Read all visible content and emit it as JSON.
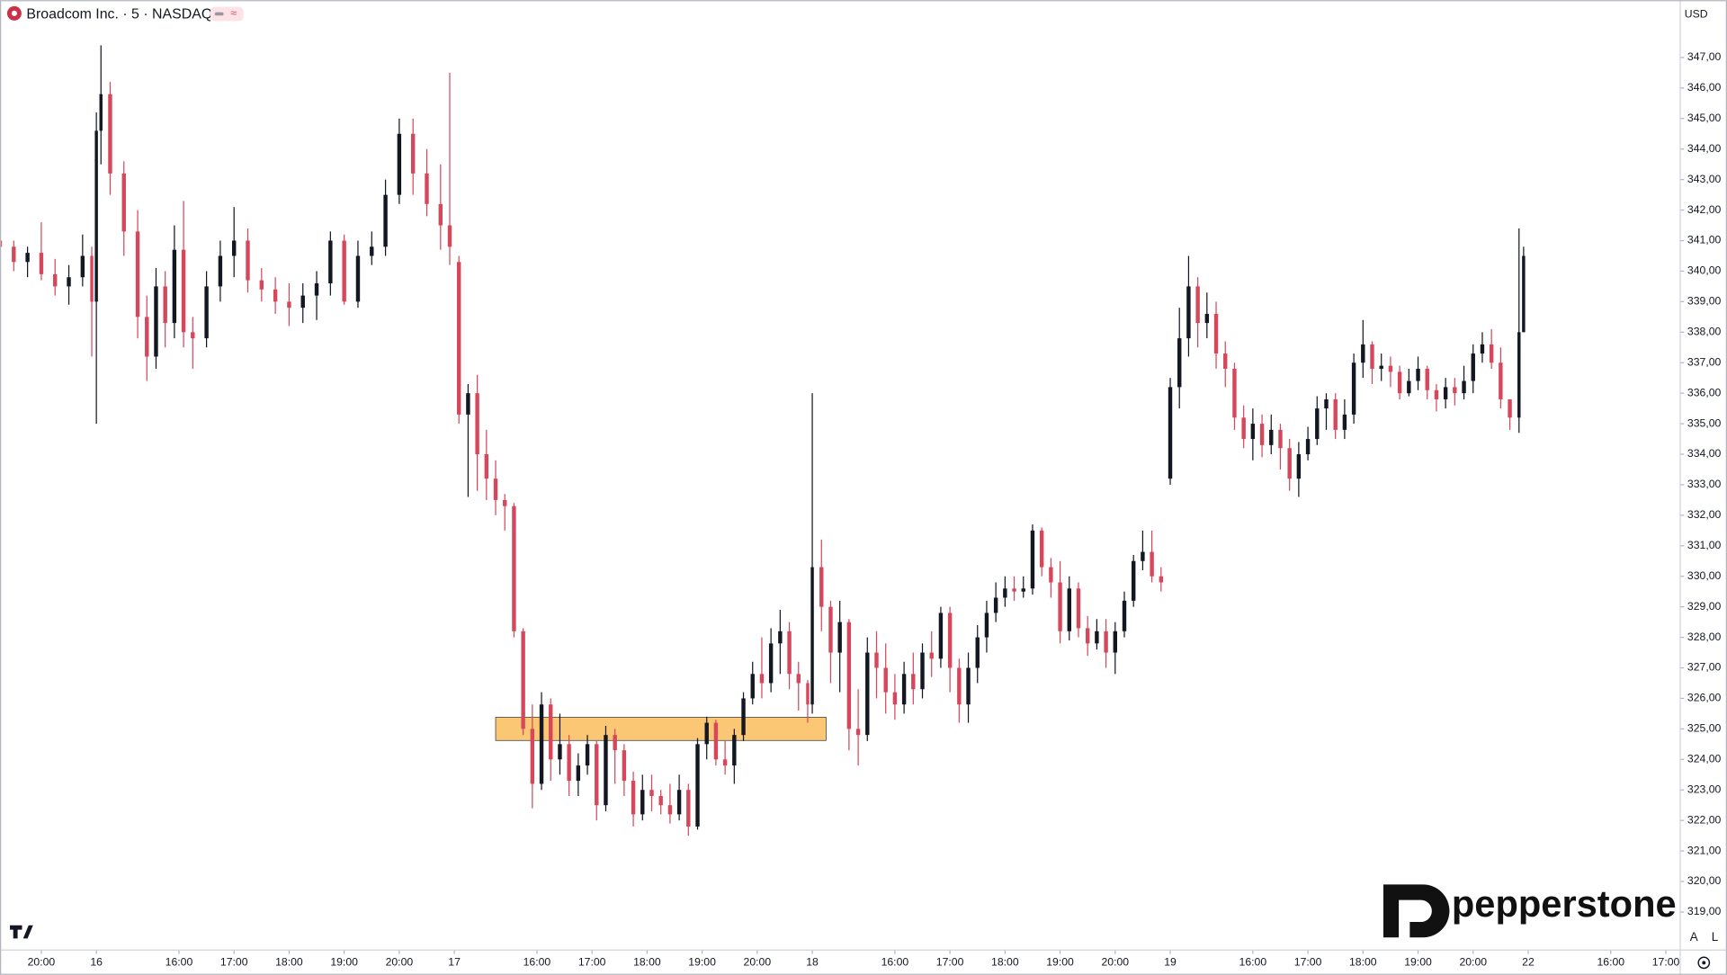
{
  "chart_data": {
    "type": "candlestick",
    "title": "Broadcom Inc. · 5 · NASDAQ",
    "currency": "USD",
    "scale_buttons": [
      "A",
      "L"
    ],
    "watermark": "pepperstone",
    "badge": "PRO",
    "up_color": "#131722",
    "down_color": "#d6475c",
    "xlim": [
      0,
      366
    ],
    "ylim": [
      317.77,
      348.88
    ],
    "xticks": [
      {
        "value": 9,
        "label": "20:00"
      },
      {
        "value": 21,
        "label": "16"
      },
      {
        "value": 39,
        "label": "16:00"
      },
      {
        "value": 51,
        "label": "17:00"
      },
      {
        "value": 63,
        "label": "18:00"
      },
      {
        "value": 75,
        "label": "19:00"
      },
      {
        "value": 87,
        "label": "20:00"
      },
      {
        "value": 99,
        "label": "17"
      },
      {
        "value": 117,
        "label": "16:00"
      },
      {
        "value": 129,
        "label": "17:00"
      },
      {
        "value": 141,
        "label": "18:00"
      },
      {
        "value": 153,
        "label": "19:00"
      },
      {
        "value": 165,
        "label": "20:00"
      },
      {
        "value": 177,
        "label": "18"
      },
      {
        "value": 195,
        "label": "16:00"
      },
      {
        "value": 207,
        "label": "17:00"
      },
      {
        "value": 219,
        "label": "18:00"
      },
      {
        "value": 231,
        "label": "19:00"
      },
      {
        "value": 243,
        "label": "20:00"
      },
      {
        "value": 255,
        "label": "19"
      },
      {
        "value": 273,
        "label": "16:00"
      },
      {
        "value": 285,
        "label": "17:00"
      },
      {
        "value": 297,
        "label": "18:00"
      },
      {
        "value": 309,
        "label": "19:00"
      },
      {
        "value": 321,
        "label": "20:00"
      },
      {
        "value": 333,
        "label": "22"
      },
      {
        "value": 351,
        "label": "16:00"
      },
      {
        "value": 363,
        "label": "17:00"
      }
    ],
    "yticks": [
      {
        "value": 319,
        "label": "319,00"
      },
      {
        "value": 320,
        "label": "320,00"
      },
      {
        "value": 321,
        "label": "321,00"
      },
      {
        "value": 322,
        "label": "322,00"
      },
      {
        "value": 323,
        "label": "323,00"
      },
      {
        "value": 324,
        "label": "324,00"
      },
      {
        "value": 325,
        "label": "325,00"
      },
      {
        "value": 326,
        "label": "326,00"
      },
      {
        "value": 327,
        "label": "327,00"
      },
      {
        "value": 328,
        "label": "328,00"
      },
      {
        "value": 329,
        "label": "329,00"
      },
      {
        "value": 330,
        "label": "330,00"
      },
      {
        "value": 331,
        "label": "331,00"
      },
      {
        "value": 332,
        "label": "332,00"
      },
      {
        "value": 333,
        "label": "333,00"
      },
      {
        "value": 334,
        "label": "334,00"
      },
      {
        "value": 335,
        "label": "335,00"
      },
      {
        "value": 336,
        "label": "336,00"
      },
      {
        "value": 337,
        "label": "337,00"
      },
      {
        "value": 338,
        "label": "338,00"
      },
      {
        "value": 339,
        "label": "339,00"
      },
      {
        "value": 340,
        "label": "340,00"
      },
      {
        "value": 341,
        "label": "341,00"
      },
      {
        "value": 342,
        "label": "342,00"
      },
      {
        "value": 343,
        "label": "343,00"
      },
      {
        "value": 344,
        "label": "344,00"
      },
      {
        "value": 345,
        "label": "345,00"
      },
      {
        "value": 346,
        "label": "346,00"
      },
      {
        "value": 347,
        "label": "347,00"
      }
    ],
    "zone": {
      "x": [
        108,
        180
      ],
      "y": [
        324.62,
        325.38
      ],
      "color": "#fbc774"
    },
    "x": [
      0,
      3,
      6,
      9,
      12,
      15,
      18,
      20,
      21,
      22,
      24,
      27,
      30,
      32,
      34,
      36,
      38,
      40,
      42,
      45,
      48,
      51,
      54,
      57,
      60,
      63,
      66,
      69,
      72,
      75,
      78,
      81,
      84,
      87,
      90,
      93,
      96,
      98,
      100,
      102,
      104,
      106,
      108,
      110,
      112,
      114,
      116,
      118,
      120,
      122,
      124,
      126,
      128,
      130,
      132,
      134,
      136,
      138,
      140,
      142,
      144,
      146,
      148,
      150,
      152,
      154,
      156,
      158,
      160,
      162,
      164,
      166,
      168,
      170,
      172,
      174,
      176,
      177,
      179,
      181,
      183,
      185,
      187,
      189,
      191,
      193,
      195,
      197,
      199,
      201,
      203,
      205,
      207,
      209,
      211,
      213,
      215,
      217,
      219,
      221,
      223,
      225,
      227,
      229,
      231,
      233,
      235,
      237,
      239,
      241,
      243,
      245,
      247,
      249,
      251,
      253,
      255,
      257,
      259,
      261,
      263,
      265,
      267,
      269,
      271,
      273,
      275,
      277,
      279,
      281,
      283,
      285,
      287,
      289,
      291,
      293,
      295,
      297,
      299,
      301,
      303,
      305,
      307,
      309,
      311,
      313,
      315,
      317,
      319,
      321,
      323,
      325,
      327,
      329,
      331,
      332
    ],
    "open": [
      341,
      340.8,
      340.3,
      340.6,
      339.9,
      339.5,
      339.8,
      340.5,
      339,
      344.6,
      345.8,
      343.2,
      341.3,
      338.5,
      337.2,
      339.5,
      338.3,
      340.7,
      338,
      337.8,
      339.5,
      340.5,
      341,
      339.7,
      339.4,
      339,
      338.8,
      339.2,
      339.6,
      341,
      339,
      340.5,
      340.8,
      342.5,
      344.5,
      343.2,
      342.2,
      341.5,
      340.3,
      335.3,
      336,
      334,
      333.2,
      332.5,
      332.3,
      328.2,
      325,
      323.2,
      325.8,
      324,
      324.5,
      323.3,
      323.8,
      324.5,
      322.5,
      324.8,
      324.3,
      323.3,
      322.2,
      323,
      322.8,
      322.5,
      322.2,
      323,
      321.8,
      324.5,
      325.2,
      324,
      323.8,
      324.8,
      326,
      326.8,
      326.5,
      327.8,
      328.2,
      326.8,
      326.5,
      325.8,
      330.3,
      329,
      327.5,
      328.5,
      325,
      324.8,
      327.5,
      327,
      326.2,
      325.8,
      326.8,
      326.3,
      327.5,
      327.3,
      328.8,
      327,
      325.8,
      327,
      328,
      328.8,
      329.3,
      329.6,
      329.5,
      329.6,
      331.5,
      330.3,
      329.8,
      328.2,
      329.6,
      328.3,
      327.8,
      328.2,
      327.5,
      328.2,
      329.2,
      330.5,
      330.8,
      330,
      333.2,
      336.2,
      337.8,
      339.5,
      338.3,
      338.6,
      337.3,
      336.8,
      335.2,
      334.5,
      335,
      334.3,
      334.8,
      334.2,
      333.2,
      334,
      334.5,
      335.5,
      335.8,
      334.8,
      335.3,
      337,
      337.6,
      336.8,
      336.9,
      336.7,
      336,
      336.4,
      336.8,
      336.1,
      335.8,
      336.2,
      336,
      336.4,
      337.3,
      337.6,
      337,
      335.8,
      335.2,
      338
    ],
    "high": [
      341.2,
      341,
      340.8,
      341.6,
      340.4,
      340.2,
      341.2,
      340.8,
      345.2,
      347.4,
      346.2,
      343.6,
      342,
      339.2,
      340.1,
      340,
      341.5,
      342.3,
      338.5,
      340,
      341,
      342.1,
      341.4,
      340.1,
      339.8,
      339.6,
      339.6,
      340,
      341.3,
      341.2,
      341,
      341.3,
      343,
      345,
      345,
      344,
      343.5,
      346.5,
      340.5,
      336.3,
      336.6,
      334.8,
      333.8,
      332.7,
      332.4,
      328.3,
      325.8,
      326.2,
      326,
      325.5,
      324.8,
      324.2,
      324.8,
      324.6,
      325.1,
      325,
      324.5,
      323.6,
      323.5,
      323.5,
      323,
      323.2,
      323.5,
      323.2,
      324.7,
      325.4,
      325.3,
      324.6,
      325,
      326.2,
      327.2,
      328,
      328.3,
      328.9,
      328.5,
      327.2,
      326.6,
      336,
      331.2,
      329.2,
      329.2,
      328.6,
      326.3,
      328,
      328.2,
      327.8,
      326.8,
      327.2,
      327.5,
      327.8,
      328.2,
      329,
      329,
      327.3,
      327.5,
      328.4,
      329.2,
      329.8,
      330,
      330,
      330,
      331.7,
      331.6,
      330.6,
      330.5,
      330,
      329.8,
      328.7,
      328.6,
      328.6,
      328.5,
      329.5,
      330.7,
      331.5,
      331.5,
      330.3,
      336.5,
      338.8,
      340.5,
      339.8,
      339.3,
      339,
      337.7,
      337,
      335.6,
      335.5,
      335.3,
      335.3,
      335,
      334.5,
      334.4,
      334.9,
      335.9,
      336,
      336,
      335.8,
      337.3,
      338.4,
      337.7,
      337.3,
      337.2,
      336.9,
      336.8,
      337.2,
      336.9,
      336.3,
      336.5,
      336.5,
      336.9,
      337.6,
      338,
      338.1,
      337.5,
      335.8,
      341.4,
      340.8
    ],
    "low": [
      340.5,
      340,
      339.8,
      339.7,
      339.2,
      338.9,
      339.5,
      337.2,
      335,
      343.5,
      342.5,
      340.5,
      337.8,
      336.4,
      336.8,
      337.5,
      337.8,
      337.5,
      336.8,
      337.5,
      339,
      339.8,
      339.3,
      339,
      338.6,
      338.2,
      338.3,
      338.4,
      339.2,
      338.9,
      338.8,
      340.2,
      340.5,
      342.2,
      342.5,
      341.8,
      340.7,
      340.2,
      335,
      332.6,
      332.8,
      332.5,
      332,
      331.5,
      328,
      324.8,
      322.4,
      323,
      323.3,
      323.5,
      322.8,
      322.8,
      323.5,
      322,
      322.3,
      323.2,
      322.8,
      321.8,
      322,
      322.3,
      322.2,
      321.9,
      322,
      321.5,
      321.7,
      324,
      323.8,
      323.5,
      323.2,
      324.6,
      325.8,
      326,
      326.2,
      326.8,
      326.3,
      325.6,
      325.2,
      325.5,
      328.2,
      326.5,
      326.2,
      324.3,
      323.8,
      324.6,
      326,
      325.5,
      325.3,
      325.5,
      325.8,
      326,
      326.7,
      327,
      326.2,
      325.2,
      325.2,
      326.5,
      327.5,
      328.5,
      329,
      329.2,
      329.3,
      329.4,
      330,
      329.3,
      327.8,
      327.9,
      328,
      327.4,
      327.6,
      327,
      326.8,
      328,
      329,
      330.2,
      329.8,
      329.5,
      333,
      335.5,
      337.2,
      337.5,
      337.8,
      336.8,
      336.2,
      334.8,
      334.2,
      333.8,
      333.9,
      334,
      333.5,
      332.8,
      332.6,
      333.8,
      334.3,
      334.8,
      334.5,
      334.5,
      335,
      336.5,
      336.3,
      336.4,
      336.2,
      335.8,
      335.9,
      336.1,
      335.8,
      335.4,
      335.5,
      335.6,
      335.8,
      336,
      337,
      336.8,
      335.5,
      334.8,
      334.7,
      338
    ],
    "close": [
      340.8,
      340.3,
      340.6,
      339.9,
      339.5,
      339.8,
      340.5,
      339,
      344.6,
      345.8,
      343.2,
      341.3,
      338.5,
      337.2,
      339.5,
      338.3,
      340.7,
      338,
      337.8,
      339.5,
      340.5,
      341,
      339.7,
      339.4,
      339,
      338.8,
      339.2,
      339.6,
      341,
      339,
      340.5,
      340.8,
      342.5,
      344.5,
      343.2,
      342.2,
      341.5,
      340.8,
      335.3,
      336,
      334,
      333.2,
      332.5,
      332.3,
      328.2,
      325,
      323.2,
      325.8,
      324,
      324.5,
      323.3,
      323.8,
      324.5,
      322.5,
      324.8,
      324.3,
      323.3,
      322.2,
      323,
      322.8,
      322.5,
      322.2,
      323,
      321.8,
      324.5,
      325.2,
      324,
      323.8,
      324.8,
      326,
      326.8,
      326.5,
      327.8,
      328.2,
      326.8,
      326.5,
      325.8,
      330.3,
      329,
      327.5,
      328.5,
      325,
      324.8,
      327.5,
      327,
      326.2,
      325.8,
      326.8,
      326.3,
      327.5,
      327.3,
      328.8,
      327,
      325.8,
      327,
      328,
      328.8,
      329.3,
      329.6,
      329.5,
      329.6,
      331.5,
      330.3,
      329.8,
      328.2,
      329.6,
      328.3,
      327.8,
      328.2,
      327.5,
      328.2,
      329.2,
      330.5,
      330.8,
      330,
      329.8,
      336.2,
      337.8,
      339.5,
      338.3,
      338.6,
      337.3,
      336.8,
      335.2,
      334.5,
      335,
      334.3,
      334.8,
      334.2,
      333.2,
      334,
      334.5,
      335.5,
      335.8,
      334.8,
      335.3,
      337,
      337.6,
      336.8,
      336.9,
      336.7,
      336,
      336.4,
      336.8,
      336.1,
      335.8,
      336.2,
      336,
      336.4,
      337.3,
      337.6,
      337,
      335.8,
      335.2,
      338,
      340.5
    ]
  }
}
